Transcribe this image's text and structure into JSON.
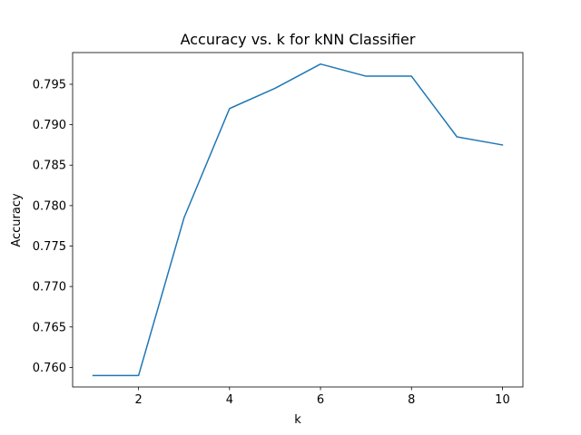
{
  "chart_data": {
    "type": "line",
    "title": "Accuracy vs. k for kNN Classifier",
    "xlabel": "k",
    "ylabel": "Accuracy",
    "x": [
      1,
      2,
      3,
      4,
      5,
      6,
      7,
      8,
      9,
      10
    ],
    "series": [
      {
        "values": [
          0.759,
          0.759,
          0.7785,
          0.792,
          0.7945,
          0.7975,
          0.796,
          0.796,
          0.7885,
          0.7875
        ],
        "color": "#1f77b4"
      }
    ],
    "xlim": [
      0.55,
      10.45
    ],
    "ylim": [
      0.75758,
      0.79892
    ],
    "xticks": [
      2,
      4,
      6,
      8,
      10
    ],
    "xtick_labels": [
      "2",
      "4",
      "6",
      "8",
      "10"
    ],
    "yticks": [
      0.76,
      0.765,
      0.77,
      0.775,
      0.78,
      0.785,
      0.79,
      0.795
    ],
    "ytick_labels": [
      "0.760",
      "0.765",
      "0.770",
      "0.775",
      "0.780",
      "0.785",
      "0.790",
      "0.795"
    ],
    "grid": false,
    "legend": false
  }
}
